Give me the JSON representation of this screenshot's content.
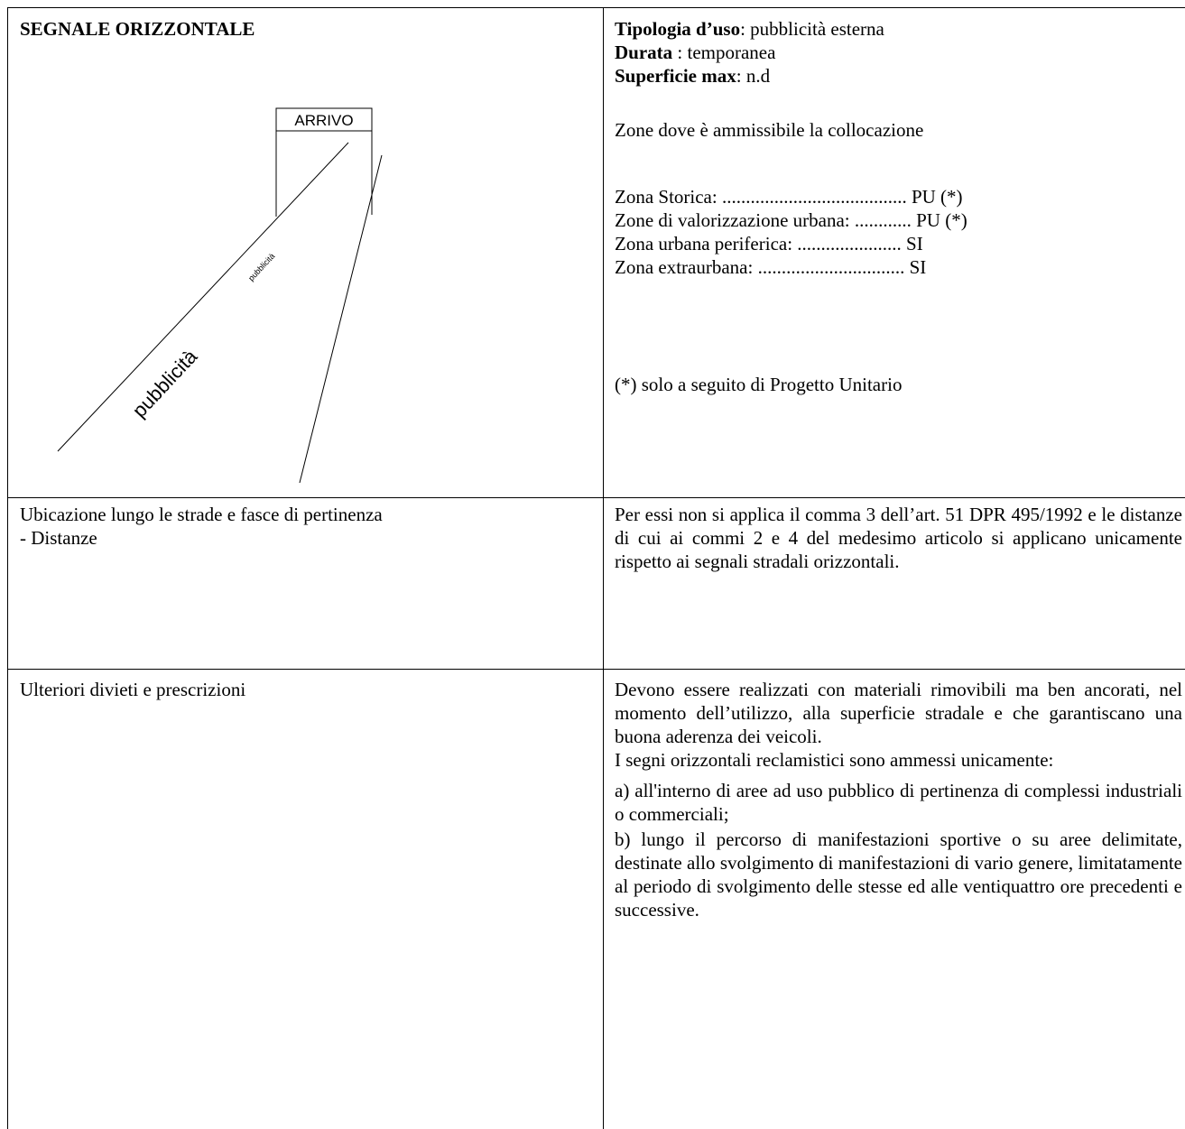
{
  "left": {
    "title": "SEGNALE ORIZZONTALE",
    "diagram": {
      "sign": "ARRIVO",
      "label_small": "pubblicità",
      "label_large": "pubblicità"
    }
  },
  "info": {
    "fields": [
      {
        "label": "Tipologia d’uso",
        "value": ": pubblicità esterna"
      },
      {
        "label": "Durata",
        "value": ": temporanea"
      },
      {
        "label": "Superficie max",
        "value": ": n.d"
      }
    ],
    "zones_heading": "Zone dove è ammissibile la collocazione",
    "zones": [
      "Zona Storica: ....................................... PU (*)",
      "Zone di valorizzazione urbana: ............ PU (*)",
      "Zona urbana periferica: ......................  SI",
      "Zona extraurbana: ...............................  SI"
    ],
    "note": "(*) solo a seguito di Progetto Unitario"
  },
  "rows": [
    {
      "label": [
        "Ubicazione lungo le strade e fasce di pertinenza",
        "- Distanze"
      ],
      "text": [
        "Per essi non si applica il comma 3 dell’art. 51 DPR 495/1992 e le distanze di cui ai commi 2 e 4 del medesimo articolo si applicano unicamente rispetto ai segnali stradali orizzontali."
      ]
    },
    {
      "label": [
        "Ulteriori divieti e prescrizioni"
      ],
      "text": [
        "Devono essere realizzati con  materiali rimovibili ma ben ancorati, nel momento dell’utilizzo, alla superficie stradale e che  garantiscano una buona aderenza dei veicoli.",
        "I segni orizzontali reclamistici sono ammessi unicamente:",
        "a)  all'interno di aree ad uso pubblico di pertinenza di complessi industriali o commerciali;",
        "b) lungo il percorso di manifestazioni sportive o su aree delimitate, destinate allo svolgimento di manifestazioni di vario genere, limitatamente al periodo di svolgimento delle stesse ed alle ventiquattro ore precedenti e successive."
      ]
    }
  ]
}
